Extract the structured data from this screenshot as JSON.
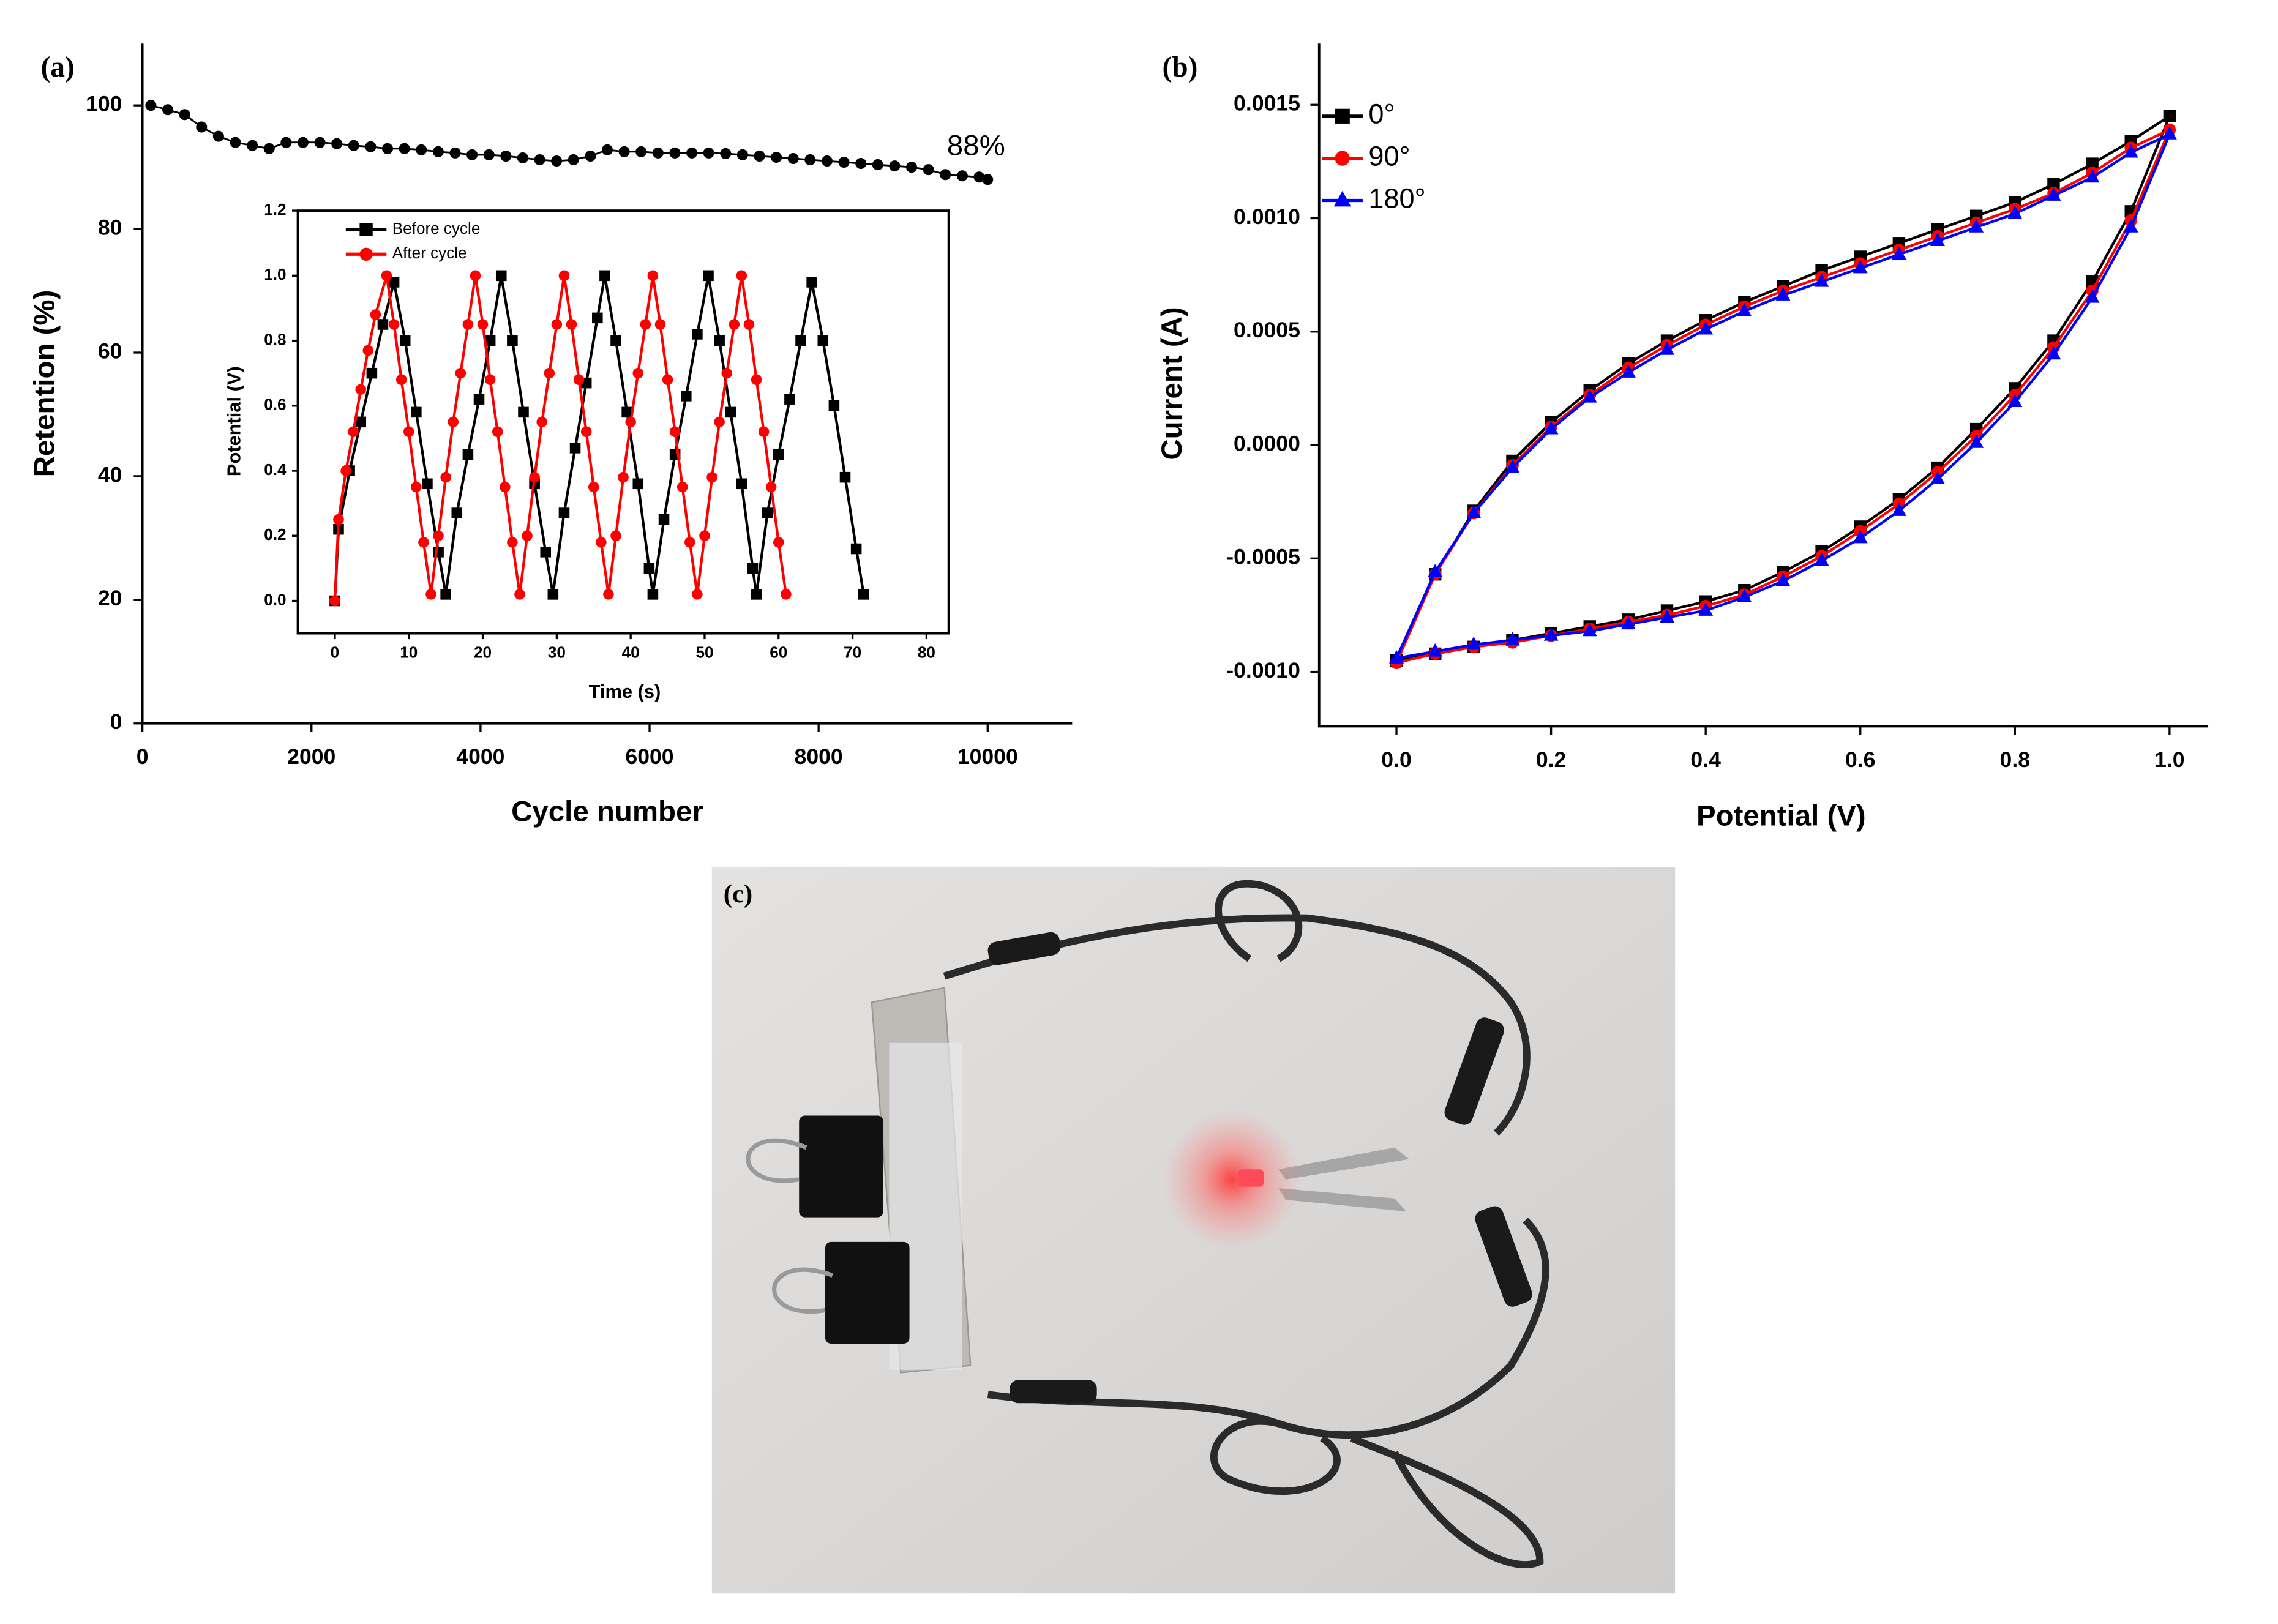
{
  "chart_data": [
    {
      "type": "line",
      "label": "(a)",
      "x_label": "Cycle number",
      "y_label": "Retention (%)",
      "annotation": "88%",
      "color": "#000000",
      "marker": "dot",
      "x": [
        100,
        300,
        500,
        700,
        900,
        1100,
        1300,
        1500,
        1700,
        1900,
        2100,
        2300,
        2500,
        2700,
        2900,
        3100,
        3300,
        3500,
        3700,
        3900,
        4100,
        4300,
        4500,
        4700,
        4900,
        5100,
        5300,
        5500,
        5700,
        5900,
        6100,
        6300,
        6500,
        6700,
        6900,
        7100,
        7300,
        7500,
        7700,
        7900,
        8100,
        8300,
        8500,
        8700,
        8900,
        9100,
        9300,
        9500,
        9700,
        9900,
        10000
      ],
      "values": [
        100,
        99.3,
        98.5,
        96.5,
        95,
        94,
        93.5,
        93,
        94,
        94,
        94,
        93.8,
        93.5,
        93.3,
        93,
        93,
        92.8,
        92.5,
        92.3,
        92,
        92,
        91.8,
        91.5,
        91.2,
        91,
        91.2,
        91.8,
        92.8,
        92.5,
        92.5,
        92.3,
        92.3,
        92.3,
        92.3,
        92.2,
        92,
        91.8,
        91.6,
        91.4,
        91.2,
        91,
        90.8,
        90.6,
        90.4,
        90.2,
        90,
        89.6,
        88.8,
        88.6,
        88.4,
        88
      ],
      "xlim": [
        0,
        11000
      ],
      "xticks": [
        0,
        2000,
        4000,
        6000,
        8000,
        10000
      ],
      "ylim": [
        0,
        110
      ],
      "yticks": [
        0,
        20,
        40,
        60,
        80,
        100
      ]
    },
    {
      "type": "line",
      "x_label": "Time (s)",
      "y_label": "Potential (V)",
      "legend": "upper left",
      "series": [
        {
          "name": "Before cycle",
          "color": "#000000",
          "marker": "square",
          "x": [
            0,
            0.5,
            2,
            3.5,
            5,
            6.5,
            8,
            9.5,
            11,
            12.5,
            14,
            15,
            16.5,
            18,
            19.5,
            21,
            22.5,
            24,
            25.5,
            27,
            28.5,
            29.5,
            31,
            32.5,
            34,
            35.5,
            36.5,
            38,
            39.5,
            41,
            42.5,
            43,
            44.5,
            46,
            47.5,
            49,
            50.5,
            52,
            53.5,
            55,
            56.5,
            57,
            58.5,
            60,
            61.5,
            63,
            64.5,
            66,
            67.5,
            69,
            70.5,
            71.5
          ],
          "values": [
            0,
            0.22,
            0.4,
            0.55,
            0.7,
            0.85,
            0.98,
            0.8,
            0.58,
            0.36,
            0.15,
            0.02,
            0.27,
            0.45,
            0.62,
            0.8,
            1.0,
            0.8,
            0.58,
            0.36,
            0.15,
            0.02,
            0.27,
            0.47,
            0.67,
            0.87,
            1.0,
            0.8,
            0.58,
            0.36,
            0.1,
            0.02,
            0.25,
            0.45,
            0.63,
            0.82,
            1.0,
            0.8,
            0.58,
            0.36,
            0.1,
            0.02,
            0.27,
            0.45,
            0.62,
            0.8,
            0.98,
            0.8,
            0.6,
            0.38,
            0.16,
            0.02
          ]
        },
        {
          "name": "After cycle",
          "color": "#ff0000",
          "marker": "circle",
          "x": [
            0,
            0.5,
            1.5,
            2.5,
            3.5,
            4.5,
            5.5,
            7,
            8,
            9,
            10,
            11,
            12,
            13,
            14,
            15,
            16,
            17,
            18,
            19,
            20,
            21,
            22,
            23,
            24,
            25,
            26,
            27,
            28,
            29,
            30,
            31,
            32,
            33,
            34,
            35,
            36,
            37,
            38,
            39,
            40,
            41,
            42,
            43,
            44,
            45,
            46,
            47,
            48,
            49,
            50,
            51,
            52,
            53,
            54,
            55,
            56,
            57,
            58,
            59,
            60,
            61
          ],
          "values": [
            0,
            0.25,
            0.4,
            0.52,
            0.65,
            0.77,
            0.88,
            1.0,
            0.85,
            0.68,
            0.52,
            0.35,
            0.18,
            0.02,
            0.2,
            0.38,
            0.55,
            0.7,
            0.85,
            1.0,
            0.85,
            0.68,
            0.52,
            0.35,
            0.18,
            0.02,
            0.2,
            0.38,
            0.55,
            0.7,
            0.85,
            1.0,
            0.85,
            0.68,
            0.52,
            0.35,
            0.18,
            0.02,
            0.2,
            0.38,
            0.55,
            0.7,
            0.85,
            1.0,
            0.85,
            0.68,
            0.52,
            0.35,
            0.18,
            0.02,
            0.2,
            0.38,
            0.55,
            0.7,
            0.85,
            1.0,
            0.85,
            0.68,
            0.52,
            0.35,
            0.18,
            0.02
          ]
        }
      ],
      "xlim": [
        -5,
        83
      ],
      "xticks": [
        0,
        10,
        20,
        30,
        40,
        50,
        60,
        70,
        80
      ],
      "ylim": [
        -0.1,
        1.2
      ],
      "yticks": [
        {
          "value": 0,
          "label": "0.0"
        },
        0.2,
        0.4,
        0.6,
        0.8,
        {
          "value": 1,
          "label": "1.0"
        },
        0.2,
        1.2
      ]
    },
    {
      "type": "line",
      "label": "(b)",
      "x_label": "Potential (V)",
      "y_label": "Current (A)",
      "legend": "upper left",
      "x": [
        0,
        0.05,
        0.1,
        0.15,
        0.2,
        0.25,
        0.3,
        0.35,
        0.4,
        0.45,
        0.5,
        0.55,
        0.6,
        0.65,
        0.7,
        0.75,
        0.8,
        0.85,
        0.9,
        0.95,
        1.0,
        0.95,
        0.9,
        0.85,
        0.8,
        0.75,
        0.7,
        0.65,
        0.6,
        0.55,
        0.5,
        0.45,
        0.4,
        0.35,
        0.3,
        0.25,
        0.2,
        0.15,
        0.1,
        0.05,
        0
      ],
      "series": [
        {
          "name": "0°",
          "color": "#000000",
          "marker": "square",
          "values": [
            -0.00095,
            -0.00057,
            -0.00029,
            -7e-05,
            0.0001,
            0.00024,
            0.00036,
            0.00046,
            0.00055,
            0.00063,
            0.0007,
            0.00077,
            0.00083,
            0.00089,
            0.00095,
            0.00101,
            0.00107,
            0.00115,
            0.00124,
            0.00134,
            0.00145,
            0.00103,
            0.00072,
            0.00046,
            0.00025,
            7e-05,
            -0.0001,
            -0.00024,
            -0.00036,
            -0.00047,
            -0.00056,
            -0.00064,
            -0.00069,
            -0.00073,
            -0.00077,
            -0.0008,
            -0.00083,
            -0.00086,
            -0.00089,
            -0.00092,
            -0.00095
          ]
        },
        {
          "name": "90°",
          "color": "#ff0000",
          "marker": "circle",
          "values": [
            -0.00096,
            -0.00057,
            -0.0003,
            -9e-05,
            8e-05,
            0.00022,
            0.00034,
            0.00044,
            0.00053,
            0.00061,
            0.00068,
            0.00074,
            0.0008,
            0.00086,
            0.00092,
            0.00098,
            0.00104,
            0.00111,
            0.0012,
            0.00131,
            0.00139,
            0.00099,
            0.00068,
            0.00043,
            0.00022,
            4e-05,
            -0.00012,
            -0.00026,
            -0.00038,
            -0.00049,
            -0.00058,
            -0.00066,
            -0.00071,
            -0.00075,
            -0.00078,
            -0.00081,
            -0.00084,
            -0.00087,
            -0.00089,
            -0.00092,
            -0.00096
          ]
        },
        {
          "name": "180°",
          "color": "#0000ff",
          "marker": "triangle",
          "values": [
            -0.00094,
            -0.00056,
            -0.0003,
            -0.0001,
            7e-05,
            0.00021,
            0.00032,
            0.00042,
            0.00051,
            0.00059,
            0.00066,
            0.00072,
            0.00078,
            0.00084,
            0.0009,
            0.00096,
            0.00102,
            0.0011,
            0.00118,
            0.00129,
            0.00137,
            0.00096,
            0.00065,
            0.0004,
            0.00019,
            1e-05,
            -0.00015,
            -0.00029,
            -0.00041,
            -0.00051,
            -0.0006,
            -0.00067,
            -0.00073,
            -0.00076,
            -0.00079,
            -0.00082,
            -0.00084,
            -0.00086,
            -0.00088,
            -0.00091,
            -0.00094
          ]
        }
      ],
      "xlim": [
        -0.1,
        1.05
      ],
      "xticks": [
        {
          "value": 0,
          "label": "0.0"
        },
        0.2,
        0.4,
        0.6,
        0.8,
        {
          "value": 1,
          "label": "1.0"
        }
      ],
      "ylim": [
        -0.00124,
        0.00177
      ],
      "yticks": [
        {
          "value": -0.001,
          "label": "-0.0010"
        },
        -0.0005,
        {
          "value": 0,
          "label": "0.0000"
        },
        0.0005,
        {
          "value": 0.001,
          "label": "0.0010"
        },
        0.0015
      ]
    }
  ],
  "photo": {
    "label": "(c)"
  }
}
